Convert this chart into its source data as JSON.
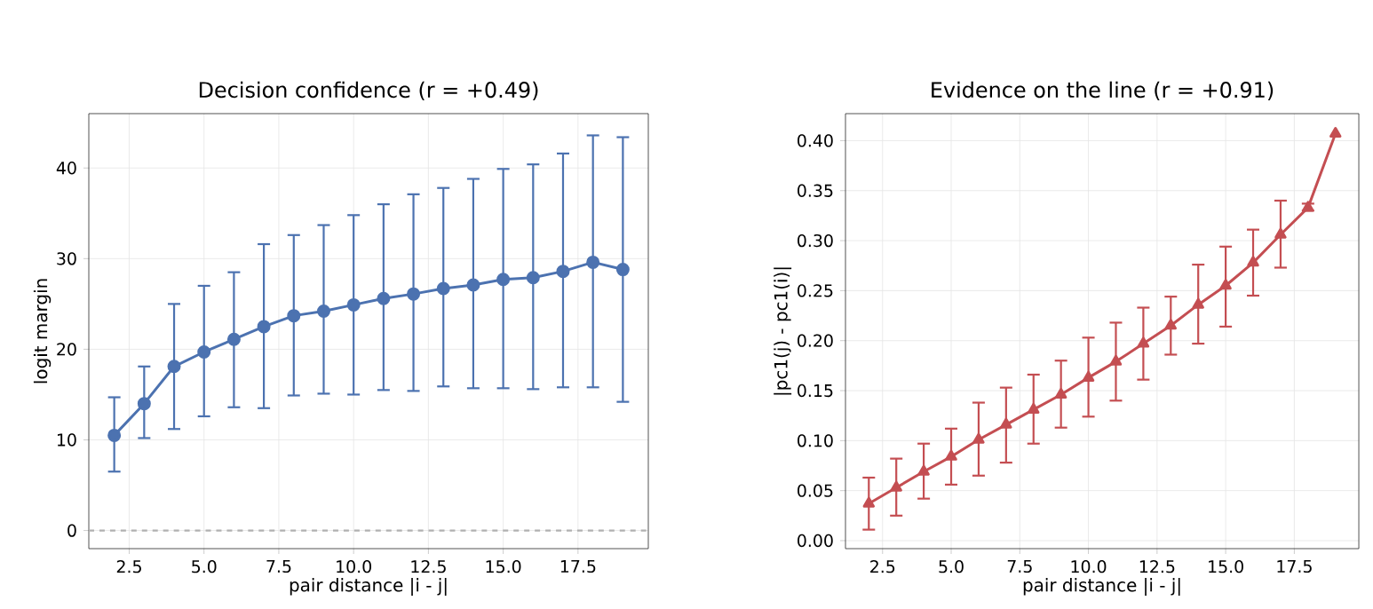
{
  "chart_data": [
    {
      "type": "line",
      "title": "Decision confidence (r = +0.49)",
      "xlabel": "pair distance |i - j|",
      "ylabel": "logit margin",
      "x": [
        2,
        3,
        4,
        5,
        6,
        7,
        8,
        9,
        10,
        11,
        12,
        13,
        14,
        15,
        16,
        17,
        18,
        19
      ],
      "series": [
        {
          "color": "#4c72b0",
          "values": [
            10.5,
            14.0,
            18.1,
            19.7,
            21.1,
            22.5,
            23.7,
            24.2,
            24.9,
            25.6,
            26.1,
            26.7,
            27.1,
            27.7,
            27.9,
            28.6,
            29.6,
            28.8
          ],
          "errors": [
            [
              6.5,
              14.7
            ],
            [
              10.2,
              18.1
            ],
            [
              11.2,
              25.0
            ],
            [
              12.6,
              27.0
            ],
            [
              13.6,
              28.5
            ],
            [
              13.5,
              31.6
            ],
            [
              14.9,
              32.6
            ],
            [
              15.1,
              33.7
            ],
            [
              15.0,
              34.8
            ],
            [
              15.5,
              36.0
            ],
            [
              15.4,
              37.1
            ],
            [
              15.9,
              37.8
            ],
            [
              15.7,
              38.8
            ],
            [
              15.7,
              39.9
            ],
            [
              15.6,
              40.4
            ],
            [
              15.8,
              41.6
            ],
            [
              15.8,
              43.6
            ],
            [
              14.2,
              43.4
            ]
          ]
        }
      ],
      "xlim": [
        1.15,
        19.85
      ],
      "ylim": [
        -2,
        46
      ],
      "xticks": [
        {
          "value": 2.5,
          "label": "2.5"
        },
        {
          "value": 5,
          "label": "5.0"
        },
        {
          "value": 7.5,
          "label": "7.5"
        },
        {
          "value": 10,
          "label": "10.0"
        },
        {
          "value": 12.5,
          "label": "12.5"
        },
        {
          "value": 15,
          "label": "15.0"
        },
        {
          "value": 17.5,
          "label": "17.5"
        }
      ],
      "yticks": [
        0,
        10,
        20,
        30,
        40
      ],
      "grid": true,
      "marker": "circle",
      "line_style": "solid",
      "ref_lines": [
        {
          "axis": "y",
          "value": 0,
          "color": "#b0b0b0",
          "line_style": "dashed"
        }
      ]
    },
    {
      "type": "line",
      "title": "Evidence on the line (r = +0.91)",
      "xlabel": "pair distance |i - j|",
      "ylabel": "|pc1(j) - pc1(i)|",
      "x": [
        2,
        3,
        4,
        5,
        6,
        7,
        8,
        9,
        10,
        11,
        12,
        13,
        14,
        15,
        16,
        17,
        18,
        19
      ],
      "series": [
        {
          "color": "#c44e52",
          "values": [
            0.037,
            0.053,
            0.069,
            0.084,
            0.101,
            0.116,
            0.131,
            0.146,
            0.163,
            0.179,
            0.197,
            0.215,
            0.236,
            0.255,
            0.278,
            0.306,
            0.333,
            0.407
          ],
          "errors": [
            [
              0.011,
              0.063
            ],
            [
              0.025,
              0.082
            ],
            [
              0.042,
              0.097
            ],
            [
              0.056,
              0.112
            ],
            [
              0.065,
              0.138
            ],
            [
              0.078,
              0.153
            ],
            [
              0.097,
              0.166
            ],
            [
              0.113,
              0.18
            ],
            [
              0.124,
              0.203
            ],
            [
              0.14,
              0.218
            ],
            [
              0.161,
              0.233
            ],
            [
              0.186,
              0.244
            ],
            [
              0.197,
              0.276
            ],
            [
              0.214,
              0.294
            ],
            [
              0.245,
              0.311
            ],
            [
              0.273,
              0.34
            ],
            [
              0.33,
              0.337
            ],
            null
          ]
        }
      ],
      "xlim": [
        1.15,
        19.85
      ],
      "ylim": [
        -0.008,
        0.427
      ],
      "xticks": [
        {
          "value": 2.5,
          "label": "2.5"
        },
        {
          "value": 5,
          "label": "5.0"
        },
        {
          "value": 7.5,
          "label": "7.5"
        },
        {
          "value": 10,
          "label": "10.0"
        },
        {
          "value": 12.5,
          "label": "12.5"
        },
        {
          "value": 15,
          "label": "15.0"
        },
        {
          "value": 17.5,
          "label": "17.5"
        }
      ],
      "yticks": [
        {
          "value": 0,
          "label": "0.00"
        },
        {
          "value": 0.05,
          "label": "0.05"
        },
        {
          "value": 0.1,
          "label": "0.10"
        },
        {
          "value": 0.15,
          "label": "0.15"
        },
        {
          "value": 0.2,
          "label": "0.20"
        },
        {
          "value": 0.25,
          "label": "0.25"
        },
        {
          "value": 0.3,
          "label": "0.30"
        },
        {
          "value": 0.35,
          "label": "0.35"
        },
        {
          "value": 0.4,
          "label": "0.40"
        }
      ],
      "grid": true,
      "marker": "triangle",
      "line_style": "solid"
    }
  ]
}
